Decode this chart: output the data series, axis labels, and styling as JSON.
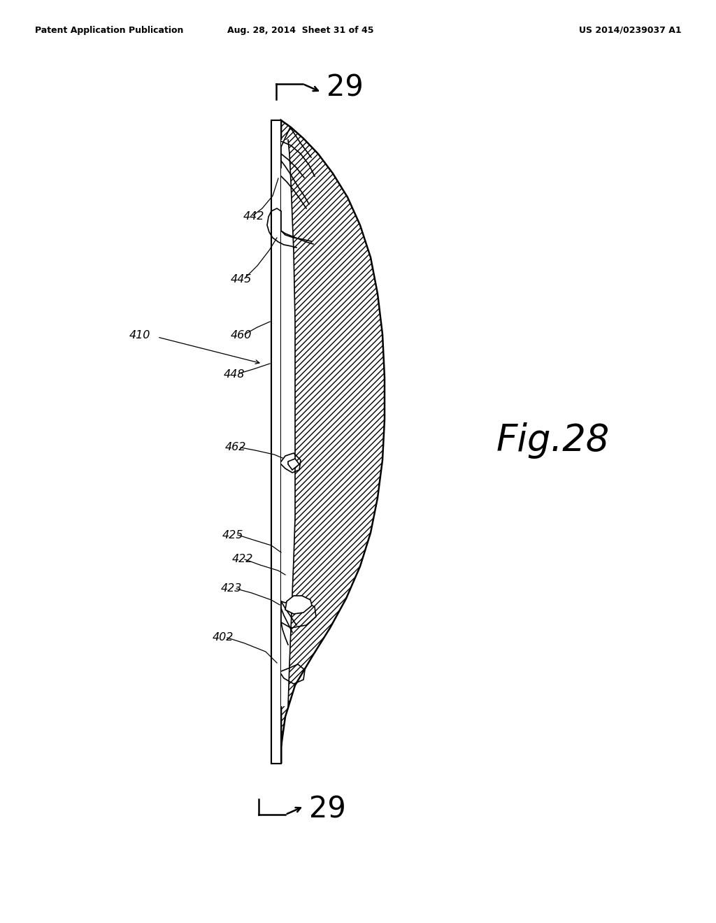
{
  "header_left": "Patent Application Publication",
  "header_center": "Aug. 28, 2014  Sheet 31 of 45",
  "header_right": "US 2014/0239037 A1",
  "bg_color": "#ffffff",
  "fig_label": "Fig.28",
  "arrow_label": "29",
  "labels": {
    "ref_410": "410",
    "ref_442": "442",
    "ref_445": "445",
    "ref_460": "460",
    "ref_448": "448",
    "ref_462": "462",
    "ref_425": "425",
    "ref_422": "422",
    "ref_423": "423",
    "ref_402": "402"
  },
  "line_color": "#000000"
}
